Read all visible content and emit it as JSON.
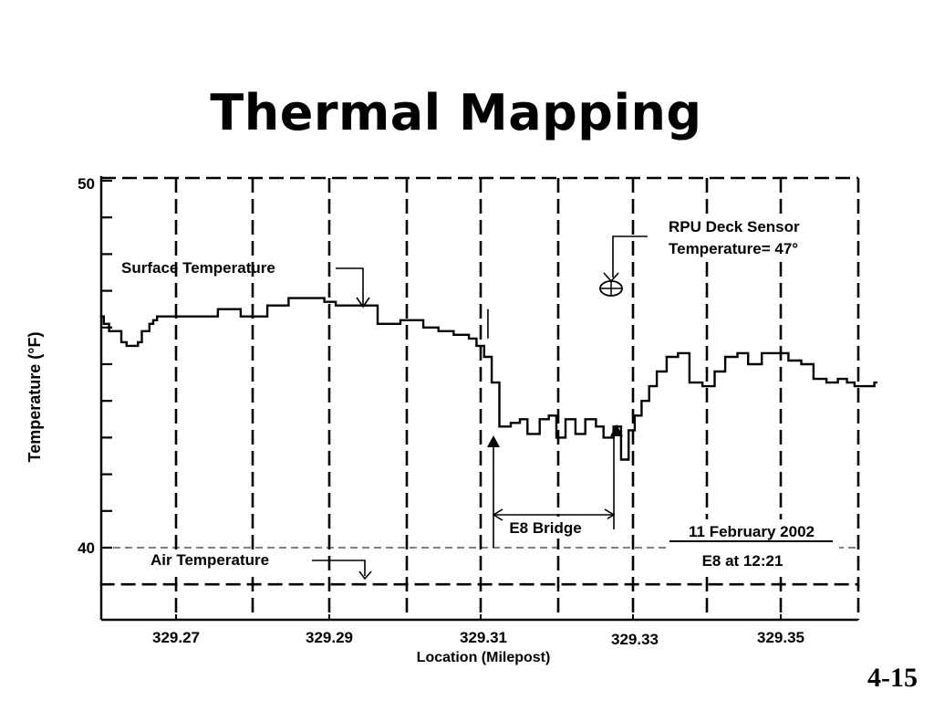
{
  "slide": {
    "title": "Thermal Mapping",
    "page_number": "4-15"
  },
  "chart_data": {
    "type": "line",
    "title": "",
    "xlabel": "Location (Milepost)",
    "ylabel": "Temperature (°F)",
    "xlim": [
      329.26,
      329.36
    ],
    "ylim": [
      38,
      50
    ],
    "y_tick_labels": [
      "50",
      "40"
    ],
    "x_tick_labels": [
      "329.27",
      "329.29",
      "329.31",
      "329.33",
      "329.35"
    ],
    "grid": true,
    "series": [
      {
        "name": "Surface Temperature",
        "color": "#000000",
        "x": [
          329.26,
          329.2605,
          329.2612,
          329.262,
          329.2628,
          329.2635,
          329.2642,
          329.265,
          329.2655,
          329.2665,
          329.267,
          329.2675,
          329.268,
          329.272,
          329.2755,
          329.2765,
          329.2785,
          329.2795,
          329.282,
          329.2835,
          329.2848,
          329.2865,
          329.2875,
          329.2895,
          329.291,
          329.2925,
          329.2965,
          329.2995,
          329.3025,
          329.3045,
          329.3065,
          329.3085,
          329.3095,
          329.3105,
          329.3115,
          329.3125,
          329.314,
          329.3152,
          329.3162,
          329.3178,
          329.319,
          329.32,
          329.3212,
          329.3225,
          329.3238,
          329.3252,
          329.3262,
          329.3275,
          329.3285,
          329.3295,
          329.3303,
          329.3312,
          329.3322,
          329.3332,
          329.3345,
          329.336,
          329.3375,
          329.3392,
          329.3408,
          329.3422,
          329.3438,
          329.3452,
          329.347,
          329.3488,
          329.3505,
          329.3522,
          329.3538,
          329.3555,
          329.357,
          329.3582,
          329.3592,
          329.3605,
          329.3618,
          329.3622
        ],
        "y": [
          46.3,
          46.1,
          45.9,
          45.9,
          45.6,
          45.5,
          45.5,
          45.6,
          45.9,
          46.1,
          46.2,
          46.3,
          46.3,
          46.3,
          46.5,
          46.5,
          46.3,
          46.3,
          46.6,
          46.6,
          46.8,
          46.8,
          46.8,
          46.7,
          46.6,
          46.6,
          46.1,
          46.2,
          46.0,
          45.9,
          45.8,
          45.7,
          45.5,
          45.2,
          44.5,
          43.3,
          43.4,
          43.5,
          43.1,
          43.5,
          43.6,
          43.0,
          43.5,
          43.1,
          43.5,
          43.3,
          43.0,
          43.3,
          42.4,
          43.2,
          43.6,
          44.0,
          44.4,
          44.8,
          45.2,
          45.3,
          44.5,
          44.4,
          44.8,
          45.2,
          45.3,
          45.0,
          45.3,
          45.3,
          45.1,
          45.0,
          44.6,
          44.5,
          44.6,
          44.5,
          44.4,
          44.4,
          44.5,
          44.5
        ]
      },
      {
        "name": "Air Temperature",
        "color": "#000000",
        "x": [
          329.26,
          329.3622
        ],
        "y": [
          39.0,
          39.0
        ]
      }
    ],
    "annotations": {
      "surface_label": "Surface Temperature",
      "air_label": "Air Temperature",
      "rpu_line1": "RPU Deck Sensor",
      "rpu_line2": "Temperature= 47°",
      "bridge_label": "E8 Bridge",
      "date_label": "11 February 2002",
      "time_label": "E8 at 12:21"
    },
    "bridge_span": [
      329.3115,
      329.3275
    ],
    "rpu_sensor": {
      "x": 329.3285,
      "y": 47.0
    }
  }
}
